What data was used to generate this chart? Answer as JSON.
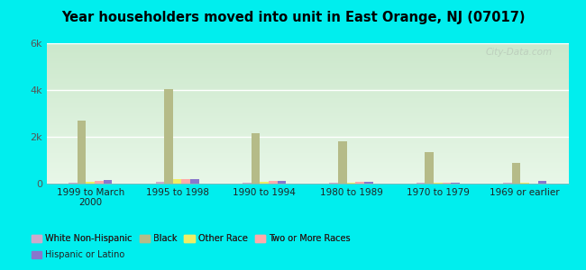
{
  "title": "Year householders moved into unit in East Orange, NJ (07017)",
  "categories": [
    "1999 to March\n2000",
    "1995 to 1998",
    "1990 to 1994",
    "1980 to 1989",
    "1970 to 1979",
    "1969 or earlier"
  ],
  "series": {
    "White Non-Hispanic": [
      30,
      60,
      40,
      30,
      30,
      30
    ],
    "Black": [
      2700,
      4050,
      2150,
      1800,
      1350,
      900
    ],
    "Other Race": [
      60,
      200,
      60,
      30,
      20,
      20
    ],
    "Two or More Races": [
      130,
      180,
      100,
      60,
      20,
      10
    ],
    "Hispanic or Latino": [
      150,
      210,
      110,
      80,
      30,
      120
    ]
  },
  "colors": {
    "White Non-Hispanic": "#ccaacc",
    "Black": "#b5bb88",
    "Other Race": "#eeee66",
    "Two or More Races": "#ffaaaa",
    "Hispanic or Latino": "#8877cc"
  },
  "ylim": [
    0,
    6000
  ],
  "yticks": [
    0,
    2000,
    4000,
    6000
  ],
  "ytick_labels": [
    "0",
    "2k",
    "4k",
    "6k"
  ],
  "background_color": "#00eeee",
  "plot_bg_top": "#cce8cc",
  "plot_bg_bottom": "#e8f8e8",
  "watermark": "City-Data.com",
  "legend_row1": [
    "White Non-Hispanic",
    "Black",
    "Other Race",
    "Two or More Races"
  ],
  "legend_row2": [
    "Hispanic or Latino"
  ]
}
